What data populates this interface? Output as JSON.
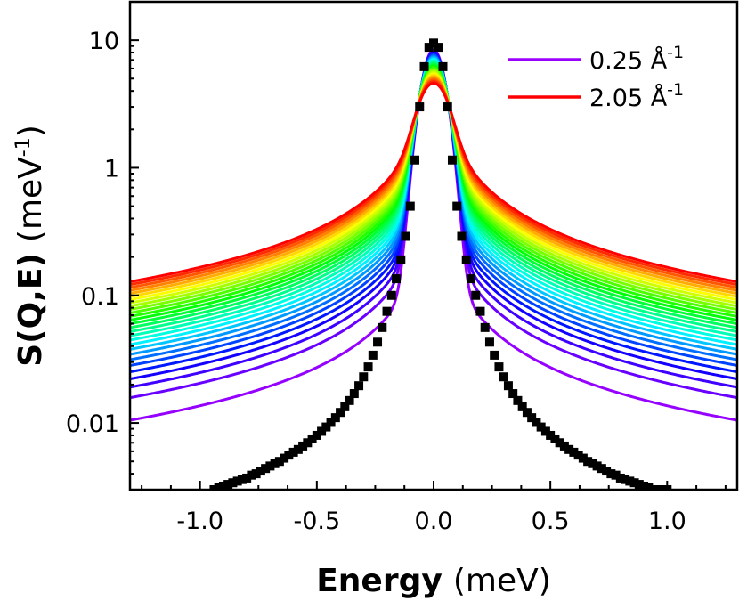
{
  "chart_data": {
    "type": "line",
    "xlabel_bold": "Energy",
    "xlabel_unit": "(meV)",
    "ylabel_bold": "S(Q,E)",
    "ylabel_unit_prefix": "(meV",
    "ylabel_unit_sup": "-1",
    "ylabel_unit_suffix": ")",
    "yscale": "log",
    "xlim": [
      -1.3,
      1.3
    ],
    "ylim": [
      0.003,
      20
    ],
    "x_ticks": [
      {
        "value": -1.0,
        "label": "-1.0"
      },
      {
        "value": -0.5,
        "label": "-0.5"
      },
      {
        "value": 0.0,
        "label": "0.0"
      },
      {
        "value": 0.5,
        "label": "0.5"
      },
      {
        "value": 1.0,
        "label": "1.0"
      }
    ],
    "y_ticks": [
      {
        "value": 10,
        "label": "10"
      },
      {
        "value": 1,
        "label": "1"
      },
      {
        "value": 0.1,
        "label": "0.1"
      },
      {
        "value": 0.01,
        "label": "0.01"
      }
    ],
    "legend": {
      "placement": "top-right",
      "entries": [
        {
          "label": "0.25 Å",
          "sup": "-1",
          "color": "#9b00ff"
        },
        {
          "label": "2.05 Å",
          "sup": "-1",
          "color": "#ff0000"
        }
      ]
    },
    "curve_family": {
      "q_min": 0.25,
      "q_max": 2.05,
      "count": 28,
      "color_first": "#9b00ff",
      "color_last": "#ff0000",
      "tail_at_x_1_3": [
        0.0105,
        0.128
      ],
      "peak_height": [
        8.4,
        4.6
      ],
      "core_width_meV": 0.045
    },
    "resolution_points": {
      "color": "#000000",
      "x": [
        -0.94,
        -0.92,
        -0.9,
        -0.88,
        -0.86,
        -0.84,
        -0.82,
        -0.8,
        -0.78,
        -0.76,
        -0.74,
        -0.72,
        -0.7,
        -0.68,
        -0.66,
        -0.64,
        -0.62,
        -0.6,
        -0.58,
        -0.56,
        -0.54,
        -0.52,
        -0.5,
        -0.48,
        -0.46,
        -0.44,
        -0.42,
        -0.4,
        -0.38,
        -0.36,
        -0.34,
        -0.32,
        -0.3,
        -0.28,
        -0.26,
        -0.24,
        -0.22,
        -0.2,
        -0.18,
        -0.16,
        -0.14,
        -0.12,
        -0.1,
        -0.08,
        -0.06,
        -0.04,
        -0.02,
        0.0,
        0.02,
        0.04,
        0.06,
        0.08,
        0.1,
        0.12,
        0.14,
        0.16,
        0.18,
        0.2,
        0.22,
        0.24,
        0.26,
        0.28,
        0.3,
        0.32,
        0.34,
        0.36,
        0.38,
        0.4,
        0.42,
        0.44,
        0.46,
        0.48,
        0.5,
        0.52,
        0.54,
        0.56,
        0.58,
        0.6,
        0.62,
        0.64,
        0.66,
        0.68,
        0.7,
        0.72,
        0.74,
        0.76,
        0.78,
        0.8,
        0.82,
        0.84,
        0.86,
        0.88,
        0.9,
        0.92,
        0.94,
        0.96,
        0.98,
        1.0
      ],
      "y": [
        0.003,
        0.0031,
        0.0032,
        0.0033,
        0.0034,
        0.0035,
        0.0036,
        0.0037,
        0.0039,
        0.004,
        0.0042,
        0.0044,
        0.0046,
        0.0048,
        0.005,
        0.0053,
        0.0056,
        0.0059,
        0.0062,
        0.0066,
        0.007,
        0.0075,
        0.008,
        0.0086,
        0.0093,
        0.0101,
        0.011,
        0.0121,
        0.0134,
        0.015,
        0.017,
        0.0196,
        0.023,
        0.0275,
        0.034,
        0.043,
        0.056,
        0.075,
        0.1,
        0.135,
        0.19,
        0.29,
        0.5,
        1.15,
        3.0,
        6.2,
        8.8,
        9.5,
        8.8,
        6.2,
        3.0,
        1.15,
        0.5,
        0.29,
        0.19,
        0.135,
        0.1,
        0.075,
        0.056,
        0.043,
        0.034,
        0.0275,
        0.023,
        0.0196,
        0.017,
        0.015,
        0.0134,
        0.0121,
        0.011,
        0.0101,
        0.0093,
        0.0086,
        0.008,
        0.0075,
        0.007,
        0.0066,
        0.0062,
        0.0059,
        0.0056,
        0.0053,
        0.005,
        0.0048,
        0.0046,
        0.0044,
        0.0042,
        0.004,
        0.0039,
        0.0037,
        0.0036,
        0.0035,
        0.0034,
        0.0033,
        0.0032,
        0.0031,
        0.003,
        0.003,
        0.003,
        0.003
      ]
    }
  }
}
